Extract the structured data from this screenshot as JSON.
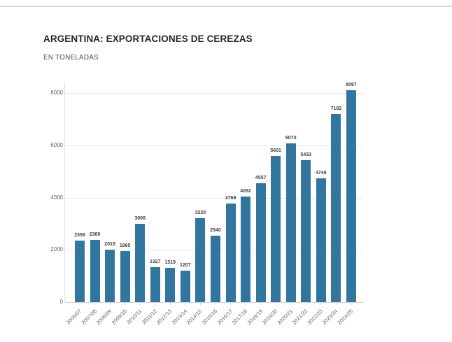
{
  "header": {
    "title": "ARGENTINA: EXPORTACIONES DE CEREZAS",
    "subtitle": "EN TONELADAS"
  },
  "chart_data": {
    "type": "bar",
    "title": "ARGENTINA: EXPORTACIONES DE CEREZAS",
    "subtitle": "EN TONELADAS",
    "xlabel": "",
    "ylabel": "",
    "categories": [
      "2006/07",
      "2007/08",
      "2008/09",
      "2009/10",
      "2010/11",
      "2011/12",
      "2012/13",
      "2013/14",
      "2014/15",
      "2015/16",
      "2016/17",
      "2017/18",
      "2018/19",
      "2019/20",
      "2020/21",
      "2021/22",
      "2022/23",
      "2023/24",
      "2024/25"
    ],
    "values": [
      2358,
      2369,
      2019,
      1965,
      3006,
      1327,
      1319,
      1207,
      3220,
      2540,
      3769,
      4052,
      4557,
      5601,
      6070,
      5433,
      4749,
      7192,
      8097
    ],
    "value_labels_shown": true,
    "ylim": [
      0,
      8430
    ],
    "yticks": [
      0,
      2000,
      4000,
      6000,
      8000
    ],
    "grid": true,
    "legend": "none"
  },
  "colors": {
    "bar": "#31769f",
    "grid": "#e8e8e8",
    "baseline": "#d6d6d6",
    "axis_line": "#e0e0e0",
    "title_text": "#262626",
    "subtitle_text": "#4c4c4c",
    "tick_text": "#666666",
    "value_label_text": "#3f3f3f",
    "top_rule": "#d8d8d8"
  }
}
